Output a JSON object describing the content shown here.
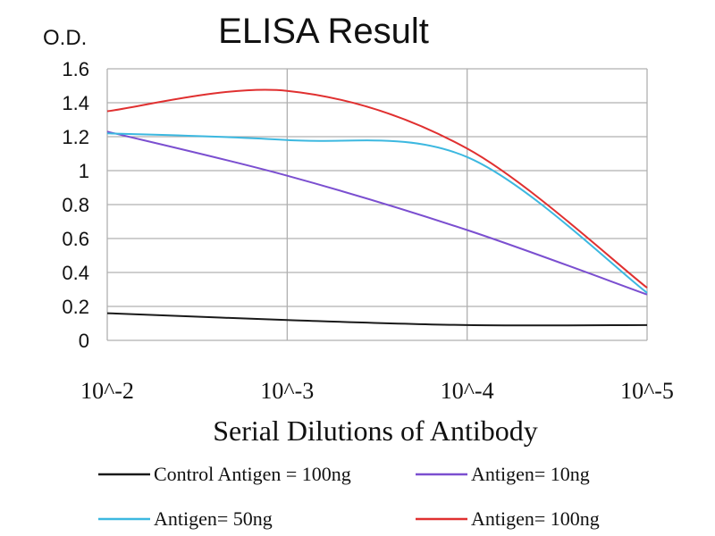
{
  "chart_data": {
    "type": "line",
    "title": "ELISA Result",
    "ylabel": "O.D.",
    "xlabel": "Serial Dilutions of Antibody",
    "categories": [
      "10^-2",
      "10^-3",
      "10^-4",
      "10^-5"
    ],
    "ylim": [
      0,
      1.6
    ],
    "yticks": [
      "0",
      "0.2",
      "0.4",
      "0.6",
      "0.8",
      "1",
      "1.2",
      "1.4",
      "1.6"
    ],
    "grid": true,
    "legend_position": "bottom",
    "series": [
      {
        "name": "Control Antigen = 100ng",
        "color": "#1a1a1a",
        "values": [
          0.16,
          0.12,
          0.09,
          0.09
        ]
      },
      {
        "name": "Antigen= 10ng",
        "color": "#7b4fd0",
        "values": [
          1.23,
          0.97,
          0.65,
          0.27
        ]
      },
      {
        "name": "Antigen= 50ng",
        "color": "#3cb8e0",
        "values": [
          1.22,
          1.18,
          1.08,
          0.28
        ]
      },
      {
        "name": "Antigen= 100ng",
        "color": "#e03030",
        "values": [
          1.35,
          1.47,
          1.13,
          0.31
        ]
      }
    ]
  }
}
